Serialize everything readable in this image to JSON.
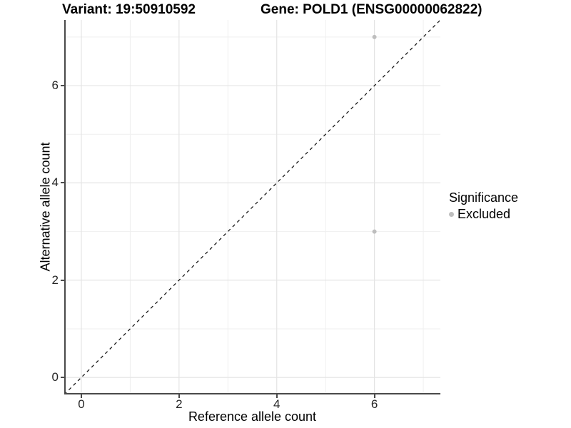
{
  "title_left": "Variant: 19:50910592",
  "title_right": "Gene: POLD1 (ENSG00000062822)",
  "chart_data": {
    "type": "scatter",
    "title": "Variant: 19:50910592    Gene: POLD1 (ENSG00000062822)",
    "xlabel": "Reference allele count",
    "ylabel": "Alternative allele count",
    "xlim": [
      -0.35,
      7.35
    ],
    "ylim": [
      -0.35,
      7.35
    ],
    "x_major_ticks": [
      0,
      2,
      4,
      6
    ],
    "y_major_ticks": [
      0,
      2,
      4,
      6
    ],
    "x_minor_gridlines": [
      1,
      3,
      5,
      7
    ],
    "y_minor_gridlines": [
      1,
      3,
      5,
      7
    ],
    "grid": "on",
    "series": [
      {
        "name": "Excluded",
        "color": "#bebebe",
        "points": [
          {
            "x": 6,
            "y": 7
          },
          {
            "x": 6,
            "y": 3
          }
        ]
      }
    ],
    "identity_line": {
      "slope": 1,
      "intercept": 0,
      "style": "dashed",
      "color": "#1a1a1a"
    },
    "legend": {
      "title": "Significance",
      "position": "right",
      "entries": [
        {
          "label": "Excluded",
          "color": "#bebebe"
        }
      ]
    }
  },
  "colors": {
    "background": "#ffffff",
    "grid_major": "#e4e4e4",
    "grid_minor": "#efefef",
    "axis_line": "#4a4a4a",
    "tick_text": "#262626",
    "point": "#bebebe"
  }
}
